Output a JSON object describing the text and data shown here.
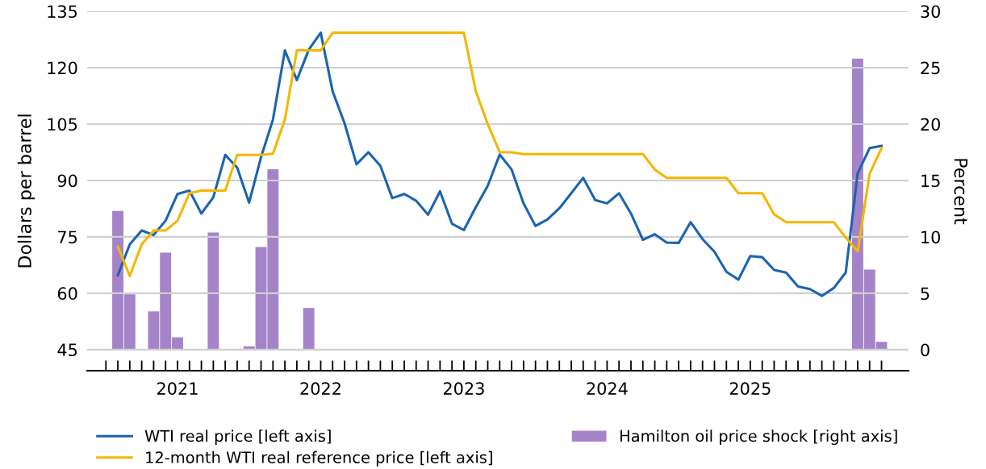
{
  "chart_data": {
    "type": "line",
    "ylabel": "Dollars per barrel",
    "y2label": "Percent",
    "x": [
      "2021-02",
      "2021-03",
      "2021-04",
      "2021-05",
      "2021-06",
      "2021-07",
      "2021-08",
      "2021-09",
      "2021-10",
      "2021-11",
      "2021-12",
      "2022-01",
      "2022-02",
      "2022-03",
      "2022-04",
      "2022-05",
      "2022-06",
      "2022-07",
      "2022-08",
      "2022-09",
      "2022-10",
      "2022-11",
      "2022-12",
      "2023-01",
      "2023-02",
      "2023-03",
      "2023-04",
      "2023-05",
      "2023-06",
      "2023-07",
      "2023-08",
      "2023-09",
      "2023-10",
      "2023-11",
      "2023-12",
      "2024-01",
      "2024-02",
      "2024-03",
      "2024-04",
      "2024-05",
      "2024-06",
      "2024-07",
      "2024-08",
      "2024-09",
      "2024-10",
      "2024-11",
      "2024-12",
      "2025-01",
      "2025-02",
      "2025-03",
      "2025-04",
      "2025-05",
      "2025-06",
      "2025-07",
      "2025-08",
      "2025-09",
      "2025-10",
      "2025-11",
      "2025-12",
      "2026-01",
      "2026-02",
      "2026-03",
      "2026-04",
      "2026-05",
      "2026-06"
    ],
    "series": [
      {
        "name": "Hamilton oil price shock [right axis]",
        "type": "bar",
        "axis": "y2",
        "color": "#a583c9",
        "values": [
          12.3,
          4.9,
          null,
          3.4,
          8.6,
          1.1,
          null,
          null,
          10.4,
          null,
          null,
          0.3,
          9.1,
          16.0,
          null,
          null,
          3.7,
          null,
          null,
          null,
          null,
          null,
          null,
          null,
          null,
          null,
          null,
          null,
          null,
          null,
          null,
          null,
          null,
          null,
          null,
          null,
          null,
          null,
          null,
          null,
          null,
          null,
          null,
          null,
          null,
          null,
          null,
          null,
          null,
          null,
          null,
          null,
          null,
          null,
          null,
          null,
          null,
          null,
          null,
          null,
          null,
          null,
          25.8,
          7.1,
          0.7
        ]
      },
      {
        "name": "WTI real price [left axis]",
        "color": "#1a64b0",
        "values": [
          64.8,
          73.0,
          76.7,
          75.5,
          79.3,
          86.4,
          87.3,
          81.2,
          85.5,
          96.8,
          93.4,
          84.1,
          96.2,
          106.2,
          124.6,
          116.7,
          124.8,
          129.3,
          113.7,
          105.2,
          94.3,
          97.5,
          93.9,
          85.3,
          86.4,
          84.6,
          80.9,
          87.1,
          78.5,
          76.8,
          82.9,
          88.6,
          96.9,
          92.9,
          83.9,
          77.9,
          79.6,
          82.6,
          86.6,
          90.7,
          84.8,
          83.9,
          86.6,
          81.2,
          74.2,
          75.7,
          73.5,
          73.4,
          78.9,
          74.4,
          71.0,
          65.7,
          63.6,
          69.9,
          69.6,
          66.2,
          65.5,
          61.8,
          61.1,
          59.3,
          61.4,
          65.5,
          91.9,
          98.6,
          99.2
        ]
      },
      {
        "name": "12-month WTI real reference price [left axis]",
        "color": "#f2b700",
        "values": [
          72.4,
          64.6,
          73.0,
          76.7,
          76.7,
          79.3,
          86.6,
          87.3,
          87.3,
          87.3,
          96.8,
          96.8,
          96.8,
          97.1,
          106.2,
          124.6,
          124.6,
          124.6,
          129.3,
          129.3,
          129.3,
          129.3,
          129.3,
          129.3,
          129.3,
          129.3,
          129.3,
          129.3,
          129.3,
          129.3,
          113.7,
          105.0,
          97.5,
          97.5,
          97.0,
          97.0,
          97.0,
          97.0,
          97.0,
          97.0,
          97.0,
          97.0,
          97.0,
          97.0,
          97.0,
          92.9,
          90.7,
          90.7,
          90.7,
          90.7,
          90.7,
          90.7,
          86.6,
          86.6,
          86.6,
          81.0,
          78.9,
          78.9,
          78.9,
          78.9,
          78.9,
          74.8,
          71.1,
          91.8,
          98.6
        ]
      }
    ],
    "xlim": [
      "2020-11-14",
      "2026-08-09"
    ],
    "xticks": [
      {
        "value": "2021-01",
        "label": null
      },
      {
        "value": "2021-02",
        "label": null
      },
      {
        "value": "2021-03",
        "label": null
      },
      {
        "value": "2021-04",
        "label": null
      },
      {
        "value": "2021-05",
        "label": null
      },
      {
        "value": "2021-06",
        "label": null
      },
      {
        "value": "2021-07",
        "label": "2021"
      },
      {
        "value": "2021-08",
        "label": null
      },
      {
        "value": "2021-09",
        "label": null
      },
      {
        "value": "2021-10",
        "label": null
      },
      {
        "value": "2021-11",
        "label": null
      },
      {
        "value": "2021-12",
        "label": null
      },
      {
        "value": "2022-01",
        "label": null
      },
      {
        "value": "2022-02",
        "label": null
      },
      {
        "value": "2022-03",
        "label": null
      },
      {
        "value": "2022-04",
        "label": null
      },
      {
        "value": "2022-05",
        "label": null
      },
      {
        "value": "2022-06",
        "label": null
      },
      {
        "value": "2022-07",
        "label": "2022"
      },
      {
        "value": "2022-08",
        "label": null
      },
      {
        "value": "2022-09",
        "label": null
      },
      {
        "value": "2022-10",
        "label": null
      },
      {
        "value": "2022-11",
        "label": null
      },
      {
        "value": "2022-12",
        "label": null
      },
      {
        "value": "2023-01",
        "label": null
      },
      {
        "value": "2023-02",
        "label": null
      },
      {
        "value": "2023-03",
        "label": null
      },
      {
        "value": "2023-04",
        "label": null
      },
      {
        "value": "2023-05",
        "label": null
      },
      {
        "value": "2023-06",
        "label": null
      },
      {
        "value": "2023-07",
        "label": "2023"
      },
      {
        "value": "2023-08",
        "label": null
      },
      {
        "value": "2023-09",
        "label": null
      },
      {
        "value": "2023-10",
        "label": null
      },
      {
        "value": "2023-11",
        "label": null
      },
      {
        "value": "2023-12",
        "label": null
      },
      {
        "value": "2024-01",
        "label": null
      },
      {
        "value": "2024-02",
        "label": null
      },
      {
        "value": "2024-03",
        "label": null
      },
      {
        "value": "2024-04",
        "label": null
      },
      {
        "value": "2024-05",
        "label": null
      },
      {
        "value": "2024-06",
        "label": null
      },
      {
        "value": "2024-07",
        "label": "2024"
      },
      {
        "value": "2024-08",
        "label": null
      },
      {
        "value": "2024-09",
        "label": null
      },
      {
        "value": "2024-10",
        "label": null
      },
      {
        "value": "2024-11",
        "label": null
      },
      {
        "value": "2024-12",
        "label": null
      },
      {
        "value": "2025-01",
        "label": null
      },
      {
        "value": "2025-02",
        "label": null
      },
      {
        "value": "2025-03",
        "label": null
      },
      {
        "value": "2025-04",
        "label": null
      },
      {
        "value": "2025-05",
        "label": null
      },
      {
        "value": "2025-06",
        "label": null
      },
      {
        "value": "2025-07",
        "label": "2025"
      },
      {
        "value": "2025-08",
        "label": null
      },
      {
        "value": "2025-09",
        "label": null
      },
      {
        "value": "2025-10",
        "label": null
      },
      {
        "value": "2025-11",
        "label": null
      },
      {
        "value": "2025-12",
        "label": null
      },
      {
        "value": "2026-01",
        "label": null
      },
      {
        "value": "2026-02",
        "label": null
      },
      {
        "value": "2026-03",
        "label": null
      },
      {
        "value": "2026-04",
        "label": null
      },
      {
        "value": "2026-05",
        "label": null
      },
      {
        "value": "2026-06",
        "label": null
      }
    ],
    "ylim": [
      39.4,
      135
    ],
    "yticks": [
      45,
      60,
      75,
      90,
      105,
      120,
      135
    ],
    "y2lim": [
      -1.86,
      30
    ],
    "y2ticks": [
      0,
      5,
      10,
      15,
      20,
      25,
      30
    ],
    "grid": "y",
    "legend": "bottom"
  }
}
